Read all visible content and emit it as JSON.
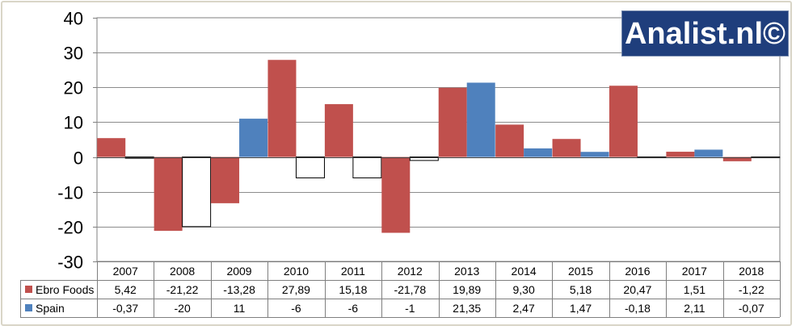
{
  "logo_text": "Analist.nl©",
  "colors": {
    "ebro": "#c0504d",
    "spain_pos": "#4f81bd",
    "spain_neg": "#ffffff",
    "grid": "#8c8c8c",
    "axis": "#7f7f7f"
  },
  "chart_data": {
    "type": "bar",
    "categories": [
      "2007",
      "2008",
      "2009",
      "2010",
      "2011",
      "2012",
      "2013",
      "2014",
      "2015",
      "2016",
      "2017",
      "2018"
    ],
    "ylim": [
      -30,
      40
    ],
    "yticks": [
      "40",
      "30",
      "20",
      "10",
      "0",
      "-10",
      "-20",
      "-30"
    ],
    "grid": true,
    "legend": "data-table",
    "series": [
      {
        "name": "Ebro Foods",
        "color": "#c0504d",
        "values": [
          5.42,
          -21.22,
          -13.28,
          27.89,
          15.18,
          -21.78,
          19.89,
          9.3,
          5.18,
          20.47,
          1.51,
          -1.22
        ],
        "labels": [
          "5,42",
          "-21,22",
          "-13,28",
          "27,89",
          "15,18",
          "-21,78",
          "19,89",
          "9,30",
          "5,18",
          "20,47",
          "1,51",
          "-1,22"
        ]
      },
      {
        "name": "Spain",
        "color": "#4f81bd",
        "values": [
          -0.37,
          -20,
          11,
          -6,
          -6,
          -1,
          21.35,
          2.47,
          1.47,
          -0.18,
          2.11,
          -0.07
        ],
        "labels": [
          "-0,37",
          "-20",
          "11",
          "-6",
          "-6",
          "-1",
          "21,35",
          "2,47",
          "1,47",
          "-0,18",
          "2,11",
          "-0,07"
        ]
      }
    ]
  }
}
